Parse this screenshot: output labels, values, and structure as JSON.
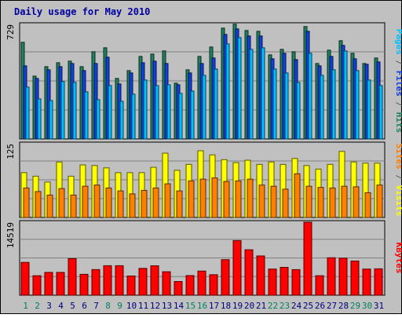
{
  "chart_data": {
    "type": "bar",
    "title": "Daily usage for May 2010",
    "categories": [
      "1",
      "2",
      "3",
      "4",
      "5",
      "6",
      "7",
      "8",
      "9",
      "10",
      "11",
      "12",
      "13",
      "14",
      "15",
      "16",
      "17",
      "18",
      "19",
      "20",
      "21",
      "22",
      "23",
      "24",
      "25",
      "26",
      "27",
      "28",
      "29",
      "30",
      "31"
    ],
    "weekend_days": [
      "1",
      "2",
      "8",
      "9",
      "15",
      "16",
      "22",
      "23",
      "29",
      "30"
    ],
    "panels": [
      {
        "id": "hits-files-pages",
        "ymax": 729,
        "ymax_label": "729",
        "side_label_parts": [
          {
            "text": "Pages",
            "color": "#00c0ff"
          },
          {
            "text": " / ",
            "color": "#606060"
          },
          {
            "text": "Files",
            "color": "#1040e0"
          },
          {
            "text": " / ",
            "color": "#606060"
          },
          {
            "text": "Hits",
            "color": "#208060"
          }
        ],
        "series": [
          {
            "name": "Hits",
            "color": "#208060",
            "values": [
              615,
              400,
              460,
              485,
              495,
              460,
              555,
              580,
              385,
              435,
              525,
              540,
              560,
              355,
              440,
              525,
              585,
              705,
              730,
              690,
              685,
              535,
              570,
              555,
              715,
              480,
              565,
              625,
              545,
              480,
              515
            ]
          },
          {
            "name": "Files",
            "color": "#1040e0",
            "values": [
              465,
              385,
              440,
              460,
              480,
              435,
              480,
              520,
              350,
              420,
              485,
              495,
              480,
              345,
              420,
              480,
              515,
              665,
              700,
              655,
              655,
              510,
              545,
              505,
              685,
              465,
              525,
              595,
              510,
              475,
              490
            ]
          },
          {
            "name": "Pages",
            "color": "#00c0ff",
            "values": [
              330,
              255,
              245,
              365,
              360,
              300,
              250,
              340,
              240,
              285,
              375,
              340,
              345,
              290,
              305,
              405,
              445,
              605,
              645,
              570,
              580,
              445,
              420,
              360,
              545,
              405,
              440,
              560,
              435,
              375,
              340
            ]
          }
        ]
      },
      {
        "id": "visits-sites",
        "ymax": 125,
        "ymax_label": "125",
        "side_label_parts": [
          {
            "text": "Sites",
            "color": "#ff8000"
          },
          {
            "text": " / ",
            "color": "#606060"
          },
          {
            "text": "Visits",
            "color": "#ffff00"
          }
        ],
        "series": [
          {
            "name": "Visits",
            "color": "#ffff00",
            "values": [
              76,
              70,
              60,
              94,
              70,
              89,
              88,
              84,
              76,
              76,
              76,
              85,
              109,
              80,
              90,
              113,
              106,
              98,
              93,
              97,
              90,
              94,
              90,
              100,
              88,
              82,
              90,
              112,
              94,
              92,
              92
            ]
          },
          {
            "name": "Sites",
            "color": "#ff8000",
            "values": [
              50,
              44,
              38,
              49,
              38,
              53,
              55,
              50,
              45,
              40,
              46,
              50,
              57,
              45,
              62,
              65,
              67,
              61,
              62,
              65,
              55,
              53,
              48,
              74,
              53,
              51,
              50,
              53,
              52,
              42,
              55
            ]
          }
        ]
      },
      {
        "id": "kbytes",
        "ymax": 14519,
        "ymax_label": "14519",
        "side_label_parts": [
          {
            "text": "KBytes",
            "color": "#ff0000"
          }
        ],
        "series": [
          {
            "name": "KBytes",
            "color": "#ff0000",
            "values": [
              6530,
              3880,
              4540,
              4540,
              7270,
              4160,
              5100,
              5870,
              5870,
              3830,
              5340,
              5850,
              4670,
              2730,
              3910,
              4800,
              4080,
              7070,
              10870,
              9040,
              7810,
              5200,
              5540,
              5090,
              14519,
              3880,
              7450,
              7370,
              6800,
              5200,
              5250
            ]
          }
        ]
      }
    ]
  }
}
